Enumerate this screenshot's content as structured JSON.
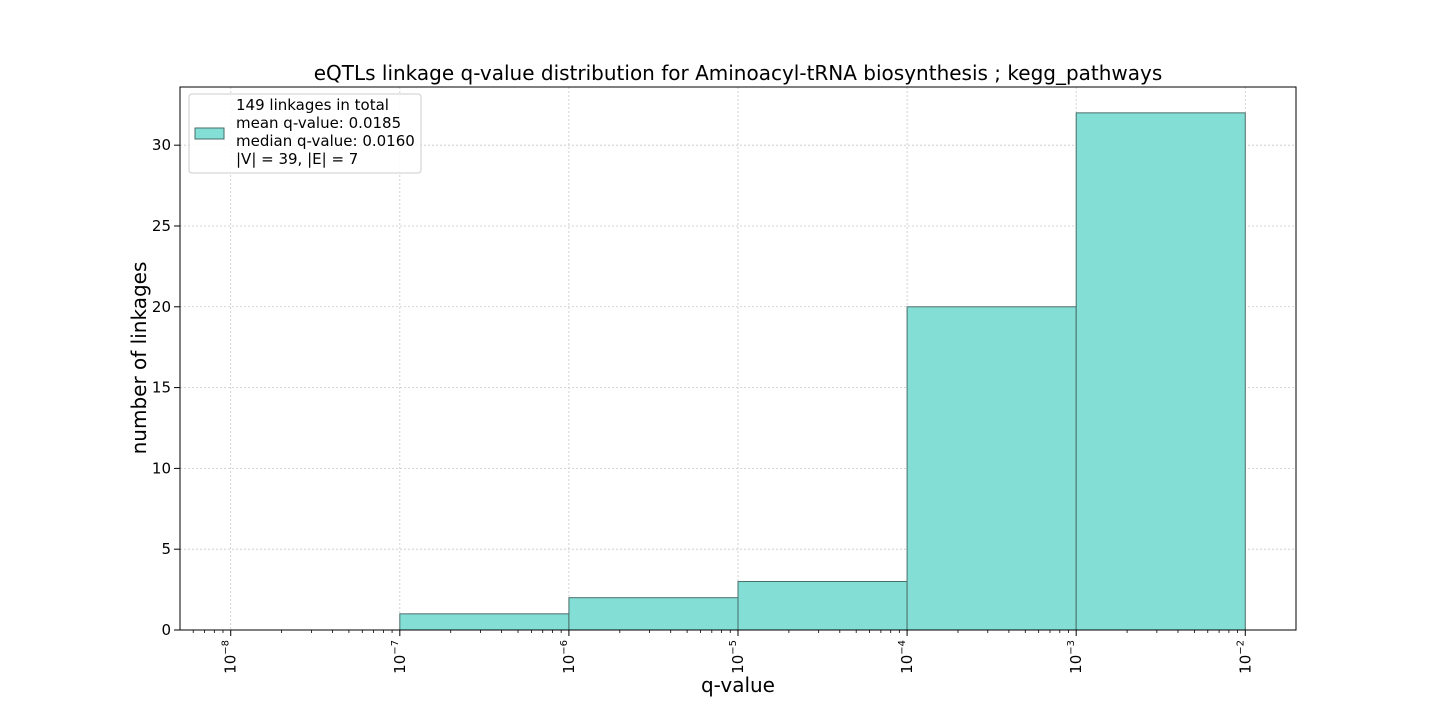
{
  "chart_data": {
    "type": "bar",
    "title": "eQTLs linkage q-value distribution for Aminoacyl-tRNA biosynthesis ; kegg_pathways",
    "xlabel": "q-value",
    "ylabel": "number of linkages",
    "x_scale": "log",
    "xlim_exponent": [
      -8.3,
      -1.7
    ],
    "ylim": [
      0,
      33.6
    ],
    "x_tick_exponents": [
      -8,
      -7,
      -6,
      -5,
      -4,
      -3,
      -2
    ],
    "y_ticks": [
      0,
      5,
      10,
      15,
      20,
      25,
      30
    ],
    "bins": [
      {
        "x0": 1e-07,
        "x1": 1e-06,
        "count": 1
      },
      {
        "x0": 1e-06,
        "x1": 1e-05,
        "count": 2
      },
      {
        "x0": 1e-05,
        "x1": 0.0001,
        "count": 3
      },
      {
        "x0": 0.0001,
        "x1": 0.001,
        "count": 20
      },
      {
        "x0": 0.001,
        "x1": 0.01,
        "count": 32
      }
    ],
    "bar_color": "#83dfd5",
    "bar_edge_color": "#4a6e6a",
    "grid": true,
    "legend_position": "upper-left",
    "legend_lines": [
      "149 linkages in total",
      "mean q-value: 0.0185",
      "median q-value: 0.0160",
      "|V| = 39, |E| = 7"
    ]
  }
}
